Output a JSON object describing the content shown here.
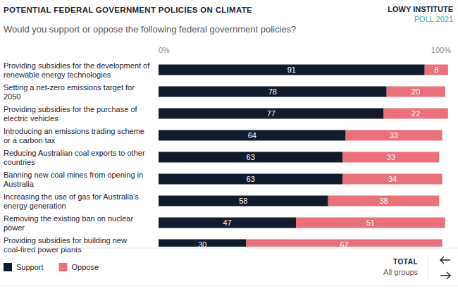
{
  "chart_data": {
    "type": "bar",
    "title": "POTENTIAL FEDERAL GOVERNMENT POLICIES ON CLIMATE",
    "subtitle": "Would you support or oppose the following federal government policies?",
    "annotations": [
      "LOWY INSTITUTE",
      "POLL 2021",
      "TOTAL",
      "All groups"
    ],
    "orientation": "horizontal",
    "stacked": true,
    "data_labels": true,
    "grid": false,
    "legend": "bottom-left",
    "tick_labels": "x",
    "xlim": [
      0,
      100
    ],
    "xticks": [
      {
        "value": 0,
        "label": "0%"
      },
      {
        "value": 100,
        "label": "100%"
      }
    ],
    "categories": [
      "Providing subsidies for the development of renewable energy technologies",
      "Setting a net-zero emissions target for 2050",
      "Providing subsidies for the purchase of electric vehicles",
      "Introducing an emissions trading scheme or a carbon tax",
      "Reducing Australian coal exports to other countries",
      "Banning new coal mines from opening in Australia",
      "Increasing the use of gas for Australia's energy generation",
      "Removing the existing ban on nuclear power",
      "Providing subsidies for building new coal-fired power plants"
    ],
    "series": [
      {
        "name": "Support",
        "color": "#121b2c",
        "values": [
          91,
          78,
          77,
          64,
          63,
          63,
          58,
          47,
          30
        ]
      },
      {
        "name": "Oppose",
        "color": "#e8717a",
        "values": [
          8,
          20,
          22,
          33,
          33,
          34,
          38,
          51,
          67
        ]
      }
    ]
  }
}
